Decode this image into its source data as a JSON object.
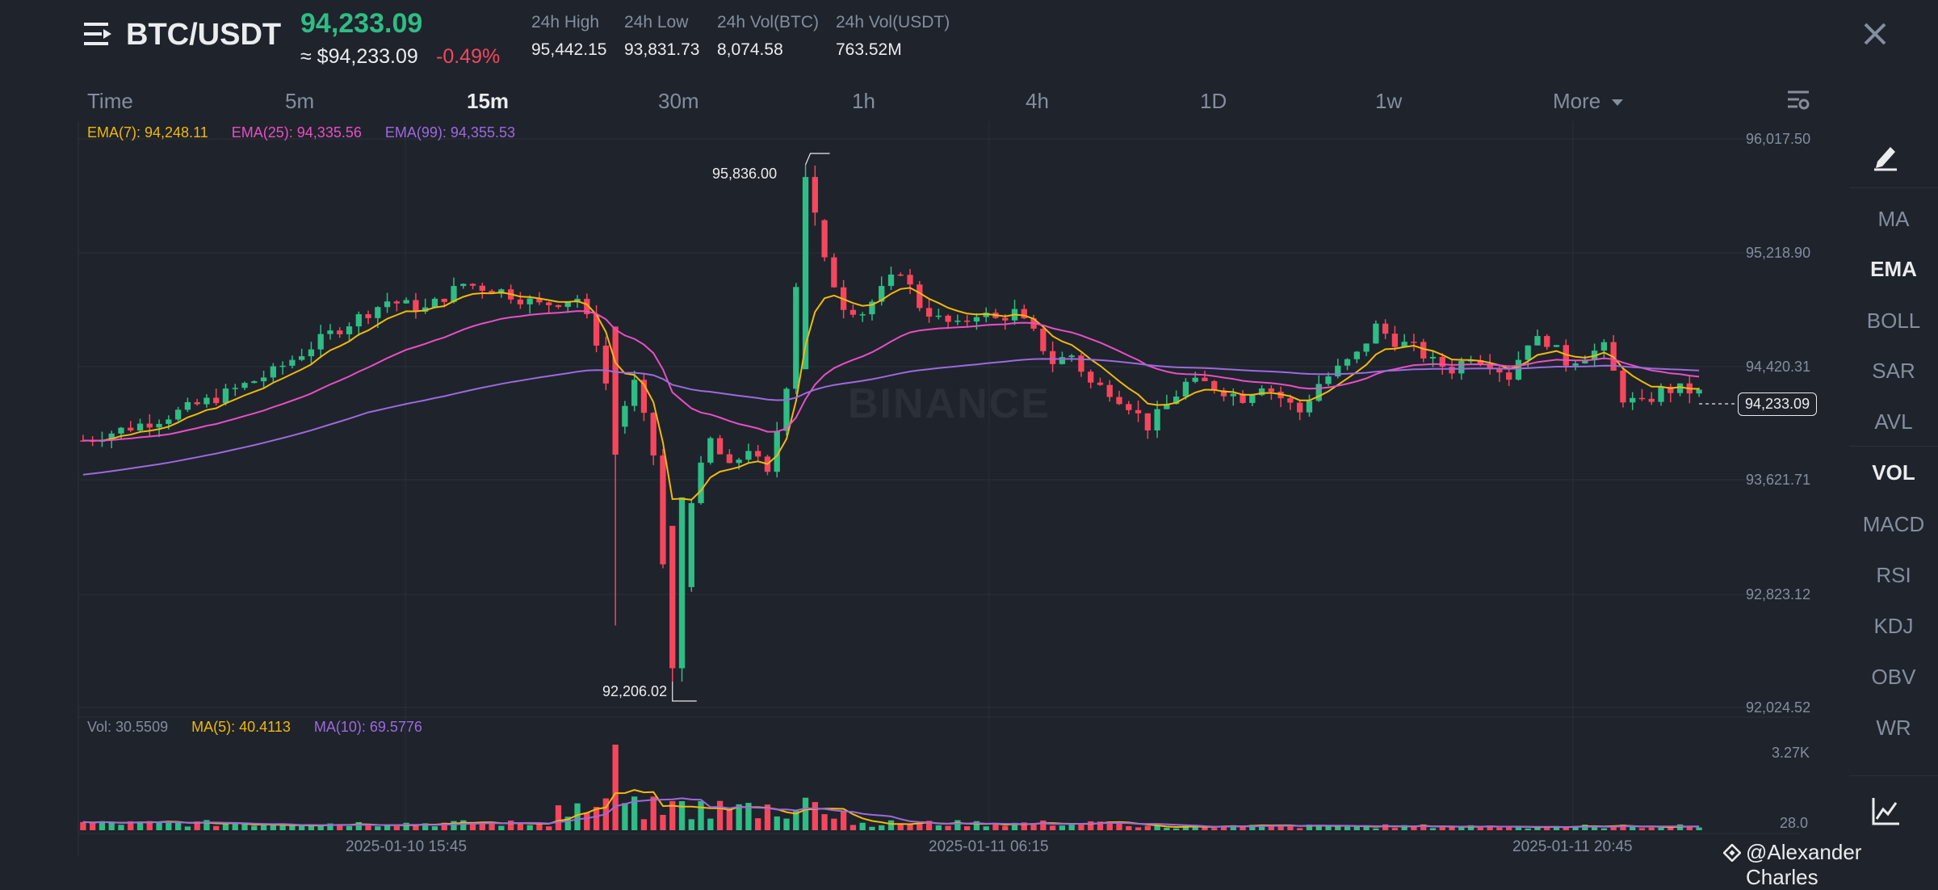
{
  "header": {
    "pair": "BTC/USDT",
    "last_price": "94,233.09",
    "usd_price": "≈ $94,233.09",
    "change": "-0.49%",
    "stats": [
      {
        "label": "24h High",
        "value": "95,442.15"
      },
      {
        "label": "24h Low",
        "value": "93,831.73"
      },
      {
        "label": "24h Vol(BTC)",
        "value": "8,074.58"
      },
      {
        "label": "24h Vol(USDT)",
        "value": "763.52M"
      }
    ]
  },
  "intervals": [
    "Time",
    "5m",
    "15m",
    "30m",
    "1h",
    "4h",
    "1D",
    "1w",
    "More"
  ],
  "active_interval": "15m",
  "ema_legend": {
    "ema7": "EMA(7): 94,248.11",
    "ema25": "EMA(25): 94,335.56",
    "ema99": "EMA(99): 94,355.53"
  },
  "vol_legend": {
    "vol": "Vol: 30.5509",
    "ma5": "MA(5): 40.4113",
    "ma10": "MA(10): 69.5776"
  },
  "y_axis": [
    "96,017.50",
    "95,218.90",
    "94,420.31",
    "93,621.71",
    "92,823.12",
    "92,024.52"
  ],
  "vol_axis": [
    "3.27K",
    "28.0"
  ],
  "x_axis": [
    "2025-01-10 15:45",
    "2025-01-11 06:15",
    "2025-01-11 20:45"
  ],
  "high_label": "95,836.00",
  "low_label": "92,206.02",
  "current_price_tag": "94,233.09",
  "watermark": "BINANCE",
  "side_panel": {
    "items": [
      "MA",
      "EMA",
      "BOLL",
      "SAR",
      "AVL",
      "VOL",
      "MACD",
      "RSI",
      "KDJ",
      "OBV",
      "WR"
    ],
    "active": [
      "EMA",
      "VOL"
    ]
  },
  "credit": "@Alexander Charles",
  "colors": {
    "up": "#2ebd85",
    "down": "#f6465d",
    "ema7": "#f0b90b",
    "ema25": "#e84fc4",
    "ema99": "#9c6ade",
    "background": "#1f232c"
  },
  "chart_data": {
    "type": "candlestick",
    "y_range": [
      92024.52,
      96017.5
    ],
    "candle_count": 146,
    "high": 95836.0,
    "low": 92206.02,
    "last": 94233.09,
    "candles": []
  }
}
